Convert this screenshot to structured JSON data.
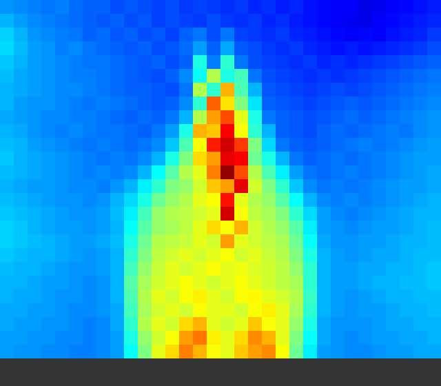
{
  "chart_data": {
    "type": "heatmap",
    "tick_labels": false,
    "zlim": [
      0,
      1
    ],
    "values": [
      [
        0.27,
        0.26,
        0.25,
        0.24,
        0.25,
        0.23,
        0.22,
        0.22,
        0.2,
        0.21,
        0.2,
        0.19,
        0.2,
        0.18,
        0.19,
        0.18,
        0.17,
        0.18,
        0.16,
        0.17,
        0.15,
        0.16,
        0.14,
        0.13,
        0.12,
        0.12,
        0.1,
        0.11,
        0.12,
        0.13,
        0.14,
        0.15
      ],
      [
        0.3,
        0.28,
        0.26,
        0.25,
        0.24,
        0.23,
        0.22,
        0.21,
        0.22,
        0.2,
        0.21,
        0.19,
        0.2,
        0.19,
        0.18,
        0.2,
        0.18,
        0.17,
        0.18,
        0.16,
        0.17,
        0.15,
        0.14,
        0.13,
        0.12,
        0.11,
        0.1,
        0.12,
        0.13,
        0.14,
        0.15,
        0.16
      ],
      [
        0.33,
        0.3,
        0.27,
        0.26,
        0.25,
        0.24,
        0.22,
        0.23,
        0.21,
        0.22,
        0.2,
        0.21,
        0.19,
        0.22,
        0.24,
        0.2,
        0.24,
        0.19,
        0.18,
        0.17,
        0.18,
        0.16,
        0.15,
        0.14,
        0.13,
        0.12,
        0.13,
        0.12,
        0.14,
        0.15,
        0.16,
        0.18
      ],
      [
        0.34,
        0.31,
        0.28,
        0.27,
        0.25,
        0.26,
        0.24,
        0.23,
        0.22,
        0.21,
        0.22,
        0.2,
        0.21,
        0.23,
        0.28,
        0.22,
        0.29,
        0.21,
        0.2,
        0.18,
        0.17,
        0.18,
        0.16,
        0.15,
        0.14,
        0.15,
        0.14,
        0.15,
        0.16,
        0.17,
        0.18,
        0.2
      ],
      [
        0.32,
        0.3,
        0.28,
        0.27,
        0.26,
        0.25,
        0.24,
        0.24,
        0.23,
        0.22,
        0.21,
        0.22,
        0.2,
        0.22,
        0.4,
        0.25,
        0.42,
        0.24,
        0.2,
        0.19,
        0.18,
        0.17,
        0.18,
        0.16,
        0.17,
        0.16,
        0.17,
        0.18,
        0.19,
        0.2,
        0.21,
        0.22
      ],
      [
        0.31,
        0.29,
        0.28,
        0.27,
        0.26,
        0.25,
        0.25,
        0.24,
        0.23,
        0.22,
        0.21,
        0.2,
        0.22,
        0.26,
        0.38,
        0.55,
        0.4,
        0.44,
        0.24,
        0.2,
        0.19,
        0.18,
        0.17,
        0.18,
        0.17,
        0.18,
        0.19,
        0.2,
        0.21,
        0.22,
        0.23,
        0.24
      ],
      [
        0.3,
        0.29,
        0.28,
        0.27,
        0.26,
        0.26,
        0.25,
        0.24,
        0.23,
        0.22,
        0.22,
        0.21,
        0.2,
        0.24,
        0.55,
        0.42,
        0.7,
        0.45,
        0.3,
        0.21,
        0.2,
        0.19,
        0.18,
        0.19,
        0.2,
        0.19,
        0.2,
        0.21,
        0.22,
        0.23,
        0.24,
        0.25
      ],
      [
        0.3,
        0.28,
        0.27,
        0.27,
        0.26,
        0.25,
        0.24,
        0.25,
        0.24,
        0.23,
        0.22,
        0.21,
        0.22,
        0.26,
        0.42,
        0.78,
        0.65,
        0.5,
        0.35,
        0.22,
        0.21,
        0.2,
        0.19,
        0.2,
        0.21,
        0.22,
        0.21,
        0.22,
        0.23,
        0.24,
        0.25,
        0.26
      ],
      [
        0.29,
        0.28,
        0.27,
        0.26,
        0.26,
        0.25,
        0.25,
        0.24,
        0.23,
        0.22,
        0.23,
        0.22,
        0.24,
        0.3,
        0.55,
        0.72,
        0.8,
        0.6,
        0.4,
        0.24,
        0.22,
        0.21,
        0.2,
        0.21,
        0.22,
        0.23,
        0.22,
        0.23,
        0.24,
        0.25,
        0.26,
        0.27
      ],
      [
        0.3,
        0.29,
        0.27,
        0.26,
        0.25,
        0.26,
        0.25,
        0.24,
        0.24,
        0.23,
        0.22,
        0.24,
        0.28,
        0.4,
        0.7,
        0.68,
        0.88,
        0.62,
        0.42,
        0.3,
        0.22,
        0.21,
        0.2,
        0.22,
        0.23,
        0.22,
        0.23,
        0.24,
        0.25,
        0.24,
        0.26,
        0.27
      ],
      [
        0.31,
        0.3,
        0.28,
        0.27,
        0.26,
        0.25,
        0.24,
        0.25,
        0.24,
        0.23,
        0.24,
        0.26,
        0.32,
        0.45,
        0.62,
        0.85,
        0.92,
        0.82,
        0.5,
        0.34,
        0.24,
        0.22,
        0.21,
        0.22,
        0.23,
        0.24,
        0.25,
        0.24,
        0.25,
        0.26,
        0.27,
        0.28
      ],
      [
        0.32,
        0.3,
        0.29,
        0.28,
        0.27,
        0.26,
        0.25,
        0.24,
        0.25,
        0.24,
        0.26,
        0.3,
        0.4,
        0.5,
        0.66,
        0.72,
        0.9,
        0.88,
        0.48,
        0.4,
        0.3,
        0.24,
        0.22,
        0.23,
        0.24,
        0.23,
        0.24,
        0.25,
        0.26,
        0.27,
        0.28,
        0.28
      ],
      [
        0.31,
        0.3,
        0.29,
        0.28,
        0.27,
        0.26,
        0.25,
        0.26,
        0.25,
        0.26,
        0.3,
        0.38,
        0.46,
        0.55,
        0.6,
        0.75,
        0.98,
        0.8,
        0.55,
        0.45,
        0.36,
        0.28,
        0.24,
        0.23,
        0.24,
        0.25,
        0.24,
        0.25,
        0.26,
        0.27,
        0.28,
        0.29
      ],
      [
        0.3,
        0.29,
        0.28,
        0.28,
        0.27,
        0.26,
        0.26,
        0.25,
        0.27,
        0.3,
        0.36,
        0.42,
        0.5,
        0.52,
        0.58,
        0.68,
        0.72,
        0.9,
        0.58,
        0.5,
        0.42,
        0.32,
        0.26,
        0.24,
        0.25,
        0.24,
        0.25,
        0.26,
        0.27,
        0.28,
        0.28,
        0.29
      ],
      [
        0.31,
        0.3,
        0.29,
        0.28,
        0.27,
        0.27,
        0.26,
        0.27,
        0.3,
        0.34,
        0.4,
        0.48,
        0.52,
        0.55,
        0.6,
        0.62,
        0.86,
        0.6,
        0.55,
        0.52,
        0.46,
        0.38,
        0.3,
        0.26,
        0.25,
        0.26,
        0.25,
        0.26,
        0.27,
        0.28,
        0.29,
        0.3
      ],
      [
        0.32,
        0.31,
        0.3,
        0.29,
        0.28,
        0.27,
        0.27,
        0.28,
        0.31,
        0.36,
        0.44,
        0.52,
        0.55,
        0.56,
        0.58,
        0.6,
        0.92,
        0.62,
        0.56,
        0.54,
        0.5,
        0.42,
        0.34,
        0.28,
        0.26,
        0.25,
        0.26,
        0.27,
        0.28,
        0.29,
        0.3,
        0.3
      ],
      [
        0.33,
        0.32,
        0.3,
        0.29,
        0.28,
        0.28,
        0.27,
        0.28,
        0.3,
        0.38,
        0.46,
        0.52,
        0.54,
        0.56,
        0.6,
        0.66,
        0.62,
        0.7,
        0.58,
        0.55,
        0.52,
        0.46,
        0.36,
        0.28,
        0.27,
        0.26,
        0.27,
        0.28,
        0.28,
        0.29,
        0.3,
        0.31
      ],
      [
        0.33,
        0.32,
        0.31,
        0.3,
        0.29,
        0.28,
        0.28,
        0.29,
        0.31,
        0.4,
        0.48,
        0.55,
        0.56,
        0.57,
        0.6,
        0.58,
        0.72,
        0.6,
        0.58,
        0.56,
        0.54,
        0.48,
        0.38,
        0.29,
        0.27,
        0.27,
        0.28,
        0.28,
        0.29,
        0.3,
        0.3,
        0.31
      ],
      [
        0.32,
        0.31,
        0.3,
        0.3,
        0.29,
        0.28,
        0.27,
        0.28,
        0.3,
        0.42,
        0.5,
        0.56,
        0.58,
        0.6,
        0.58,
        0.6,
        0.62,
        0.58,
        0.6,
        0.57,
        0.55,
        0.5,
        0.4,
        0.3,
        0.28,
        0.27,
        0.28,
        0.29,
        0.29,
        0.3,
        0.31,
        0.31
      ],
      [
        0.31,
        0.3,
        0.3,
        0.29,
        0.28,
        0.27,
        0.27,
        0.28,
        0.3,
        0.44,
        0.52,
        0.57,
        0.6,
        0.58,
        0.6,
        0.62,
        0.6,
        0.61,
        0.59,
        0.58,
        0.56,
        0.52,
        0.42,
        0.3,
        0.28,
        0.28,
        0.29,
        0.29,
        0.3,
        0.3,
        0.31,
        0.32
      ],
      [
        0.3,
        0.3,
        0.29,
        0.28,
        0.28,
        0.27,
        0.26,
        0.27,
        0.3,
        0.46,
        0.54,
        0.58,
        0.6,
        0.62,
        0.6,
        0.58,
        0.6,
        0.62,
        0.6,
        0.58,
        0.56,
        0.54,
        0.42,
        0.3,
        0.28,
        0.28,
        0.29,
        0.3,
        0.3,
        0.31,
        0.31,
        0.32
      ],
      [
        0.3,
        0.29,
        0.29,
        0.28,
        0.27,
        0.27,
        0.26,
        0.27,
        0.3,
        0.45,
        0.55,
        0.6,
        0.58,
        0.62,
        0.64,
        0.6,
        0.58,
        0.62,
        0.63,
        0.6,
        0.58,
        0.55,
        0.43,
        0.3,
        0.28,
        0.27,
        0.28,
        0.29,
        0.3,
        0.3,
        0.31,
        0.31
      ],
      [
        0.29,
        0.29,
        0.28,
        0.28,
        0.27,
        0.26,
        0.26,
        0.27,
        0.29,
        0.44,
        0.54,
        0.58,
        0.6,
        0.58,
        0.62,
        0.6,
        0.6,
        0.58,
        0.62,
        0.64,
        0.6,
        0.54,
        0.42,
        0.3,
        0.28,
        0.27,
        0.28,
        0.28,
        0.29,
        0.3,
        0.3,
        0.31
      ],
      [
        0.29,
        0.28,
        0.28,
        0.27,
        0.27,
        0.26,
        0.25,
        0.26,
        0.29,
        0.42,
        0.55,
        0.6,
        0.58,
        0.66,
        0.7,
        0.6,
        0.58,
        0.6,
        0.68,
        0.62,
        0.6,
        0.52,
        0.4,
        0.29,
        0.27,
        0.27,
        0.27,
        0.28,
        0.29,
        0.29,
        0.3,
        0.3
      ],
      [
        0.28,
        0.28,
        0.27,
        0.27,
        0.26,
        0.26,
        0.25,
        0.26,
        0.28,
        0.4,
        0.52,
        0.58,
        0.62,
        0.72,
        0.76,
        0.64,
        0.6,
        0.66,
        0.74,
        0.7,
        0.6,
        0.5,
        0.38,
        0.29,
        0.27,
        0.26,
        0.27,
        0.28,
        0.28,
        0.29,
        0.29,
        0.3
      ],
      [
        0.28,
        0.27,
        0.27,
        0.26,
        0.26,
        0.25,
        0.25,
        0.26,
        0.28,
        0.38,
        0.5,
        0.6,
        0.66,
        0.75,
        0.7,
        0.62,
        0.6,
        0.68,
        0.72,
        0.74,
        0.62,
        0.48,
        0.36,
        0.28,
        0.27,
        0.26,
        0.26,
        0.27,
        0.28,
        0.28,
        0.29,
        0.29
      ]
    ]
  }
}
